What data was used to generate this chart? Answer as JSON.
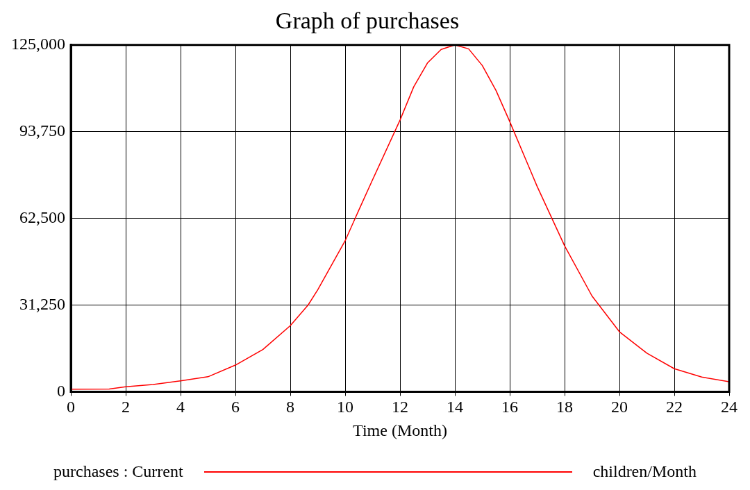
{
  "chart_data": {
    "type": "line",
    "title": "Graph of purchases",
    "xlabel": "Time (Month)",
    "x": [
      0,
      1.4,
      2,
      3,
      4,
      5,
      6,
      7,
      8,
      8.65,
      9,
      10,
      10.5,
      11,
      12,
      12.5,
      13,
      13.5,
      14,
      14.5,
      15,
      15.5,
      16,
      17,
      18,
      19,
      20,
      21,
      22,
      23,
      24
    ],
    "series": [
      {
        "name": "purchases : Current",
        "color": "#ff0000",
        "values": [
          900,
          1000,
          1800,
          2600,
          3900,
          5400,
          9600,
          15200,
          23800,
          31250,
          36700,
          54400,
          65500,
          76400,
          97900,
          109900,
          118500,
          123400,
          125000,
          123600,
          117600,
          108600,
          97400,
          74000,
          52600,
          34500,
          21600,
          13900,
          8300,
          5300,
          3600
        ]
      }
    ],
    "xlim": [
      0,
      24
    ],
    "xticks": [
      0,
      2,
      4,
      6,
      8,
      10,
      12,
      14,
      16,
      18,
      20,
      22,
      24
    ],
    "ylim": [
      0,
      125000
    ],
    "yticks": [
      {
        "value": 0,
        "label": "0"
      },
      {
        "value": 31250,
        "label": "31,250"
      },
      {
        "value": 62500,
        "label": "62,500"
      },
      {
        "value": 93750,
        "label": "93,750"
      },
      {
        "value": 125000,
        "label": "125,000"
      }
    ],
    "grid": true,
    "legend": "bottom",
    "marker": "none",
    "line_style": "solid",
    "annotations": [
      "children/Month"
    ]
  }
}
